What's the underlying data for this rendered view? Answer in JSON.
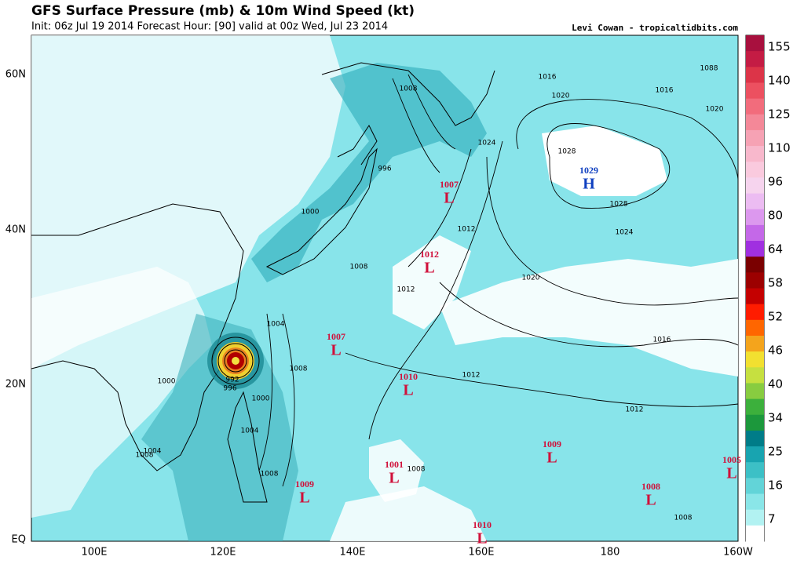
{
  "header": {
    "title": "GFS Surface Pressure (mb) & 10m Wind Speed (kt)",
    "init": "Init: 06z Jul 19 2014 Forecast Hour: [90] valid at 00z Wed, Jul 23 2014",
    "credit": "Levi Cowan - tropicaltidbits.com"
  },
  "map": {
    "lat_labels": [
      "60N",
      "40N",
      "20N",
      "EQ"
    ],
    "lon_labels": [
      "100E",
      "120E",
      "140E",
      "160E",
      "180",
      "160W"
    ],
    "centers": [
      {
        "value": "1029",
        "letter": "H"
      },
      {
        "value": "1007",
        "letter": "L"
      },
      {
        "value": "1012",
        "letter": "L"
      },
      {
        "value": "1007",
        "letter": "L"
      },
      {
        "value": "1010",
        "letter": "L"
      },
      {
        "value": "1009",
        "letter": "L"
      },
      {
        "value": "1005",
        "letter": "L"
      },
      {
        "value": "1001",
        "letter": "L"
      },
      {
        "value": "1009",
        "letter": "L"
      },
      {
        "value": "1008",
        "letter": "L"
      },
      {
        "value": "1010",
        "letter": "L"
      }
    ],
    "isobar_labels": [
      "1016",
      "1016",
      "1020",
      "1020",
      "1024",
      "1028",
      "1028",
      "1024",
      "1012",
      "1008",
      "996",
      "1000",
      "1008",
      "1012",
      "1020",
      "1016",
      "1012",
      "1012",
      "1004",
      "992",
      "996",
      "1000",
      "1004",
      "1008",
      "1008",
      "1008",
      "1008",
      "1000",
      "1004",
      "1008",
      "1088"
    ]
  },
  "colorbar": {
    "ticks": [
      155,
      140,
      125,
      110,
      96,
      80,
      64,
      58,
      52,
      46,
      40,
      34,
      25,
      16,
      7
    ],
    "colors": [
      "#a8103e",
      "#c41c44",
      "#dc3448",
      "#ec5060",
      "#f26c7c",
      "#f48898",
      "#f6a2b4",
      "#f8b8cc",
      "#facade",
      "#f6d4ee",
      "#ecbcf2",
      "#dc98ee",
      "#c468e8",
      "#a030e0",
      "#7a0000",
      "#9c0000",
      "#c40000",
      "#ff1c00",
      "#ff6600",
      "#f4a41c",
      "#f2e030",
      "#c6e040",
      "#88cc40",
      "#3cb03c",
      "#1c983c",
      "#007c88",
      "#18a4b0",
      "#3cc0c6",
      "#62d4d8",
      "#8ae6e8",
      "#b2f2f2",
      "#ffffff"
    ]
  }
}
